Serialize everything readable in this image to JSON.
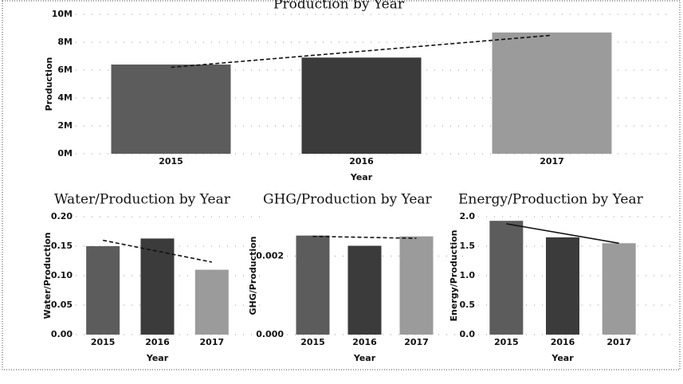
{
  "chart_data": [
    {
      "type": "bar",
      "title": "Production by Year",
      "x_label": "Year",
      "y_label": "Production",
      "categories": [
        "2015",
        "2016",
        "2017"
      ],
      "values": [
        6400000,
        6900000,
        8700000
      ],
      "colors": [
        "#5c5c5c",
        "#3b3b3b",
        "#9b9b9b"
      ],
      "ylim": [
        0,
        10000000
      ],
      "yticks": [
        {
          "value": 0,
          "label": "0M"
        },
        {
          "value": 2000000,
          "label": "2M"
        },
        {
          "value": 4000000,
          "label": "4M"
        },
        {
          "value": 6000000,
          "label": "6M"
        },
        {
          "value": 8000000,
          "label": "8M"
        },
        {
          "value": 10000000,
          "label": "10M"
        }
      ],
      "trendline": {
        "values": [
          6200000,
          8500000
        ],
        "style": "dashed"
      },
      "grid": true
    },
    {
      "type": "bar",
      "title": "Water/Production by Year",
      "x_label": "Year",
      "y_label": "Water/Production",
      "categories": [
        "2015",
        "2016",
        "2017"
      ],
      "values": [
        0.15,
        0.163,
        0.11
      ],
      "colors": [
        "#5c5c5c",
        "#3b3b3b",
        "#9b9b9b"
      ],
      "ylim": [
        0,
        0.2
      ],
      "yticks": [
        {
          "value": 0,
          "label": "0.00"
        },
        {
          "value": 0.05,
          "label": "0.05"
        },
        {
          "value": 0.1,
          "label": "0.10"
        },
        {
          "value": 0.15,
          "label": "0.15"
        },
        {
          "value": 0.2,
          "label": "0.20"
        }
      ],
      "trendline": {
        "values": [
          0.16,
          0.123
        ],
        "style": "dashed"
      },
      "grid": true
    },
    {
      "type": "bar",
      "title": "GHG/Production by Year",
      "x_label": "Year",
      "y_label": "GHG/Production",
      "categories": [
        "2015",
        "2016",
        "2017"
      ],
      "values": [
        0.00252,
        0.00226,
        0.0025
      ],
      "colors": [
        "#5c5c5c",
        "#3b3b3b",
        "#9b9b9b"
      ],
      "ylim": [
        0,
        0.003
      ],
      "yticks": [
        {
          "value": 0,
          "label": "0.000"
        },
        {
          "value": 0.002,
          "label": "0.002"
        }
      ],
      "trendline": {
        "values": [
          0.0025,
          0.00245
        ],
        "style": "dashed"
      },
      "grid": true
    },
    {
      "type": "bar",
      "title": "Energy/Production by Year",
      "x_label": "Year",
      "y_label": "Energy/Production",
      "categories": [
        "2015",
        "2016",
        "2017"
      ],
      "values": [
        1.93,
        1.65,
        1.55
      ],
      "colors": [
        "#5c5c5c",
        "#3b3b3b",
        "#9b9b9b"
      ],
      "ylim": [
        0,
        2
      ],
      "yticks": [
        {
          "value": 0,
          "label": "0.0"
        },
        {
          "value": 0.5,
          "label": "0.5"
        },
        {
          "value": 1,
          "label": "1.0"
        },
        {
          "value": 1.5,
          "label": "1.5"
        },
        {
          "value": 2,
          "label": "2.0"
        }
      ],
      "trendline": {
        "values": [
          1.88,
          1.55
        ],
        "style": "solid"
      },
      "grid": true
    }
  ]
}
